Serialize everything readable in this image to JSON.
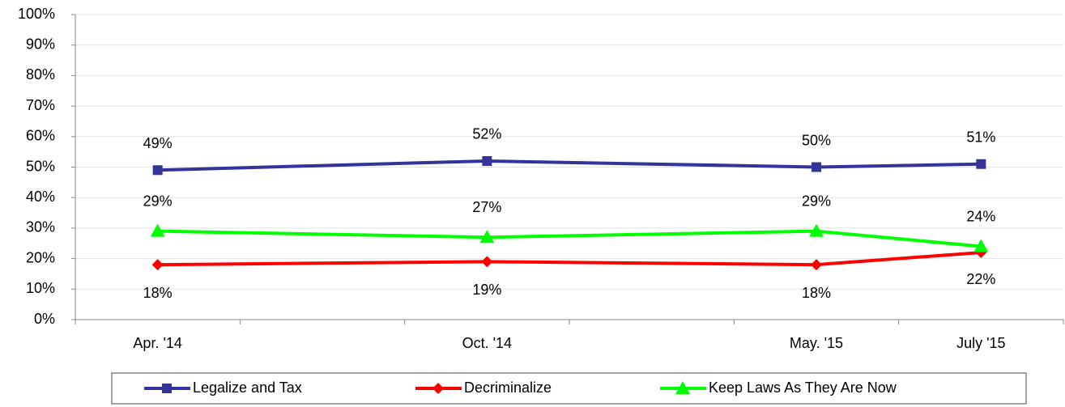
{
  "chart_data": {
    "type": "line",
    "categories": [
      "Apr. '14",
      null,
      "Oct. '14",
      null,
      "May. '15",
      "July '15"
    ],
    "series": [
      {
        "name": "Legalize and Tax",
        "color": "#333399",
        "marker": "square",
        "values": [
          49,
          null,
          52,
          null,
          50,
          51
        ],
        "value_labels": [
          "49%",
          null,
          "52%",
          null,
          "50%",
          "51%"
        ]
      },
      {
        "name": "Decriminalize",
        "color": "#ff0000",
        "marker": "diamond",
        "values": [
          18,
          null,
          19,
          null,
          18,
          22
        ],
        "value_labels": [
          "18%",
          null,
          "19%",
          null,
          "18%",
          "22%"
        ]
      },
      {
        "name": "Keep Laws As They Are Now",
        "color": "#00ff00",
        "marker": "triangle",
        "values": [
          29,
          null,
          27,
          null,
          29,
          24
        ],
        "value_labels": [
          "29%",
          null,
          "27%",
          null,
          "29%",
          "24%"
        ]
      }
    ],
    "ylim": [
      0,
      100
    ],
    "yticks": [
      {
        "value": 0,
        "label": "0%"
      },
      {
        "value": 10,
        "label": "10%"
      },
      {
        "value": 20,
        "label": "20%"
      },
      {
        "value": 30,
        "label": "30%"
      },
      {
        "value": 40,
        "label": "40%"
      },
      {
        "value": 50,
        "label": "50%"
      },
      {
        "value": 60,
        "label": "60%"
      },
      {
        "value": 70,
        "label": "70%"
      },
      {
        "value": 80,
        "label": "80%"
      },
      {
        "value": 90,
        "label": "90%"
      },
      {
        "value": 100,
        "label": "100%"
      }
    ],
    "grid": true,
    "legend": "bottom"
  }
}
